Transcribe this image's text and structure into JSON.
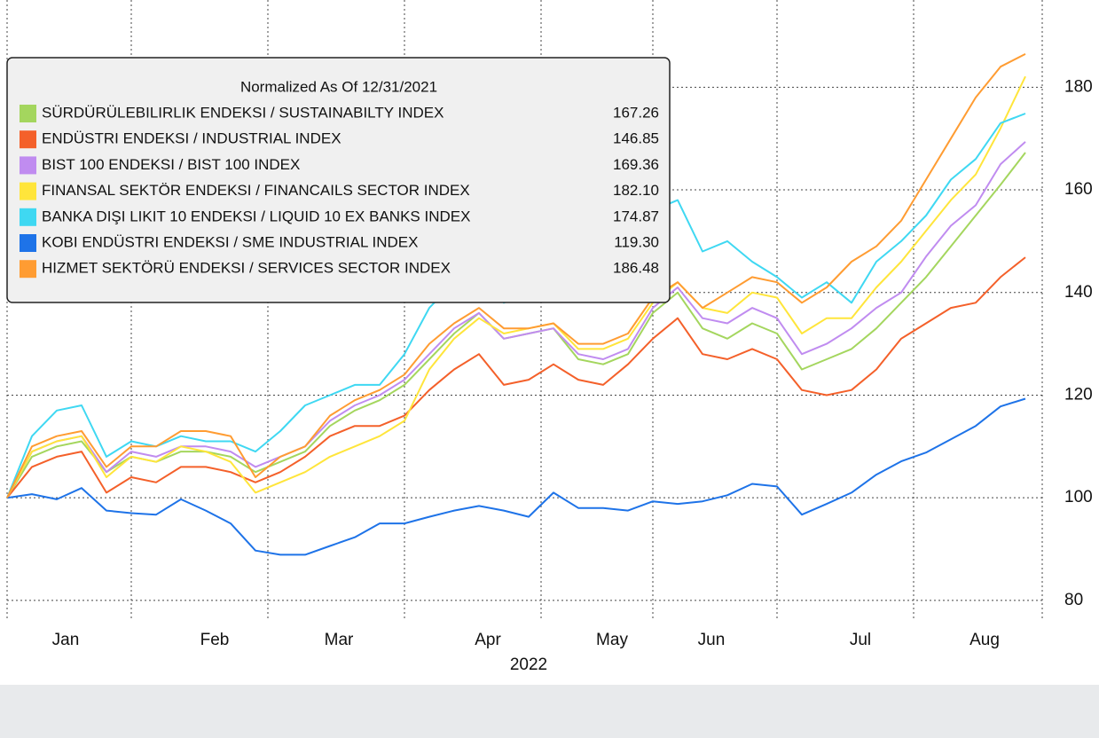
{
  "chart_data": {
    "type": "line",
    "legend_title": "Normalized As Of 12/31/2021",
    "xlabel": "2022",
    "categories": [
      null,
      null,
      "Jan",
      null,
      null,
      null,
      null,
      null,
      "Feb",
      null,
      null,
      null,
      null,
      "Mar",
      null,
      null,
      null,
      null,
      null,
      "Apr",
      null,
      null,
      null,
      null,
      "May",
      null,
      null,
      null,
      "Jun",
      null,
      null,
      null,
      null,
      null,
      "Jul",
      null,
      null,
      null,
      null,
      "Aug",
      null,
      null
    ],
    "ylim": [
      76,
      197
    ],
    "yticks": [
      80,
      100,
      120,
      140,
      160,
      180
    ],
    "grid": true,
    "legend": "upper left",
    "series": [
      {
        "name": "SÜRDÜRÜLEBILIRLIK ENDEKSI / SUSTAINABILTY INDEX",
        "color": "#a4d65e",
        "last_label": "167.26",
        "values": [
          100,
          108,
          110,
          111,
          105,
          108,
          107,
          109,
          109,
          108,
          105,
          107,
          109,
          114,
          117,
          119,
          122,
          127,
          132,
          136,
          131,
          132,
          133,
          127,
          126,
          128,
          136,
          140,
          133,
          131,
          134,
          132,
          125,
          127,
          129,
          133,
          138,
          143,
          149,
          155,
          161,
          167.26
        ]
      },
      {
        "name": "ENDÜSTRI ENDEKSI / INDUSTRIAL INDEX",
        "color": "#f4602a",
        "last_label": "146.85",
        "values": [
          100,
          106,
          108,
          109,
          101,
          104,
          103,
          106,
          106,
          105,
          103,
          105,
          108,
          112,
          114,
          114,
          116,
          121,
          125,
          128,
          122,
          123,
          126,
          123,
          122,
          126,
          131,
          135,
          128,
          127,
          129,
          127,
          121,
          120,
          121,
          125,
          131,
          134,
          137,
          138,
          143,
          146.85
        ]
      },
      {
        "name": "BIST 100 ENDEKSI / BIST 100 INDEX",
        "color": "#c08cf0",
        "last_label": "169.36",
        "values": [
          100,
          109,
          111,
          112,
          105,
          109,
          108,
          110,
          110,
          109,
          106,
          108,
          110,
          115,
          118,
          120,
          123,
          128,
          133,
          136,
          131,
          132,
          133,
          128,
          127,
          129,
          137,
          141,
          135,
          134,
          137,
          135,
          128,
          130,
          133,
          137,
          140,
          147,
          153,
          157,
          165,
          169.36
        ]
      },
      {
        "name": "FINANSAL SEKTÖR ENDEKSI / FINANCAILS SECTOR INDEX",
        "color": "#ffe53b",
        "last_label": "182.10",
        "values": [
          100,
          109,
          111,
          112,
          104,
          108,
          107,
          110,
          109,
          107,
          101,
          103,
          105,
          108,
          110,
          112,
          115,
          125,
          131,
          135,
          132,
          133,
          134,
          129,
          129,
          131,
          138,
          142,
          137,
          136,
          140,
          139,
          132,
          135,
          135,
          141,
          146,
          152,
          158,
          163,
          172,
          182.1
        ]
      },
      {
        "name": "BANKA DIŞI LIKIT 10 ENDEKSI / LIQUID 10 EX BANKS INDEX",
        "color": "#3fd8f2",
        "last_label": "174.87",
        "values": [
          100,
          112,
          117,
          118,
          108,
          111,
          110,
          112,
          111,
          111,
          109,
          113,
          118,
          120,
          122,
          122,
          128,
          137,
          142,
          146,
          138,
          140,
          142,
          140,
          139,
          142,
          156,
          158,
          148,
          150,
          146,
          143,
          139,
          142,
          138,
          146,
          150,
          155,
          162,
          166,
          173,
          174.87
        ]
      },
      {
        "name": "KOBI ENDÜSTRI ENDEKSI / SME INDUSTRIAL INDEX",
        "color": "#1e73e8",
        "last_label": "119.30",
        "values": [
          100,
          100.7,
          99.7,
          101.9,
          97.5,
          97,
          96.7,
          99.7,
          97.5,
          95,
          89.7,
          88.9,
          88.9,
          90.6,
          92.3,
          95,
          95,
          96.3,
          97.5,
          98.4,
          97.5,
          96.3,
          101,
          98,
          98,
          97.5,
          99.3,
          98.8,
          99.3,
          100.5,
          102.7,
          102.2,
          96.7,
          98.8,
          101,
          104.5,
          107.1,
          108.8,
          111.4,
          114,
          117.8,
          119.3
        ]
      },
      {
        "name": "HIZMET SEKTÖRÜ ENDEKSI / SERVICES SECTOR INDEX",
        "color": "#ff9c32",
        "last_label": "186.48",
        "values": [
          100,
          110,
          112,
          113,
          106,
          110,
          110,
          113,
          113,
          112,
          104,
          108,
          110,
          116,
          119,
          121,
          124,
          130,
          134,
          137,
          133,
          133,
          134,
          130,
          130,
          132,
          139,
          142,
          137,
          140,
          143,
          142,
          138,
          141,
          146,
          149,
          154,
          162,
          170,
          178,
          184,
          186.48
        ]
      }
    ]
  }
}
